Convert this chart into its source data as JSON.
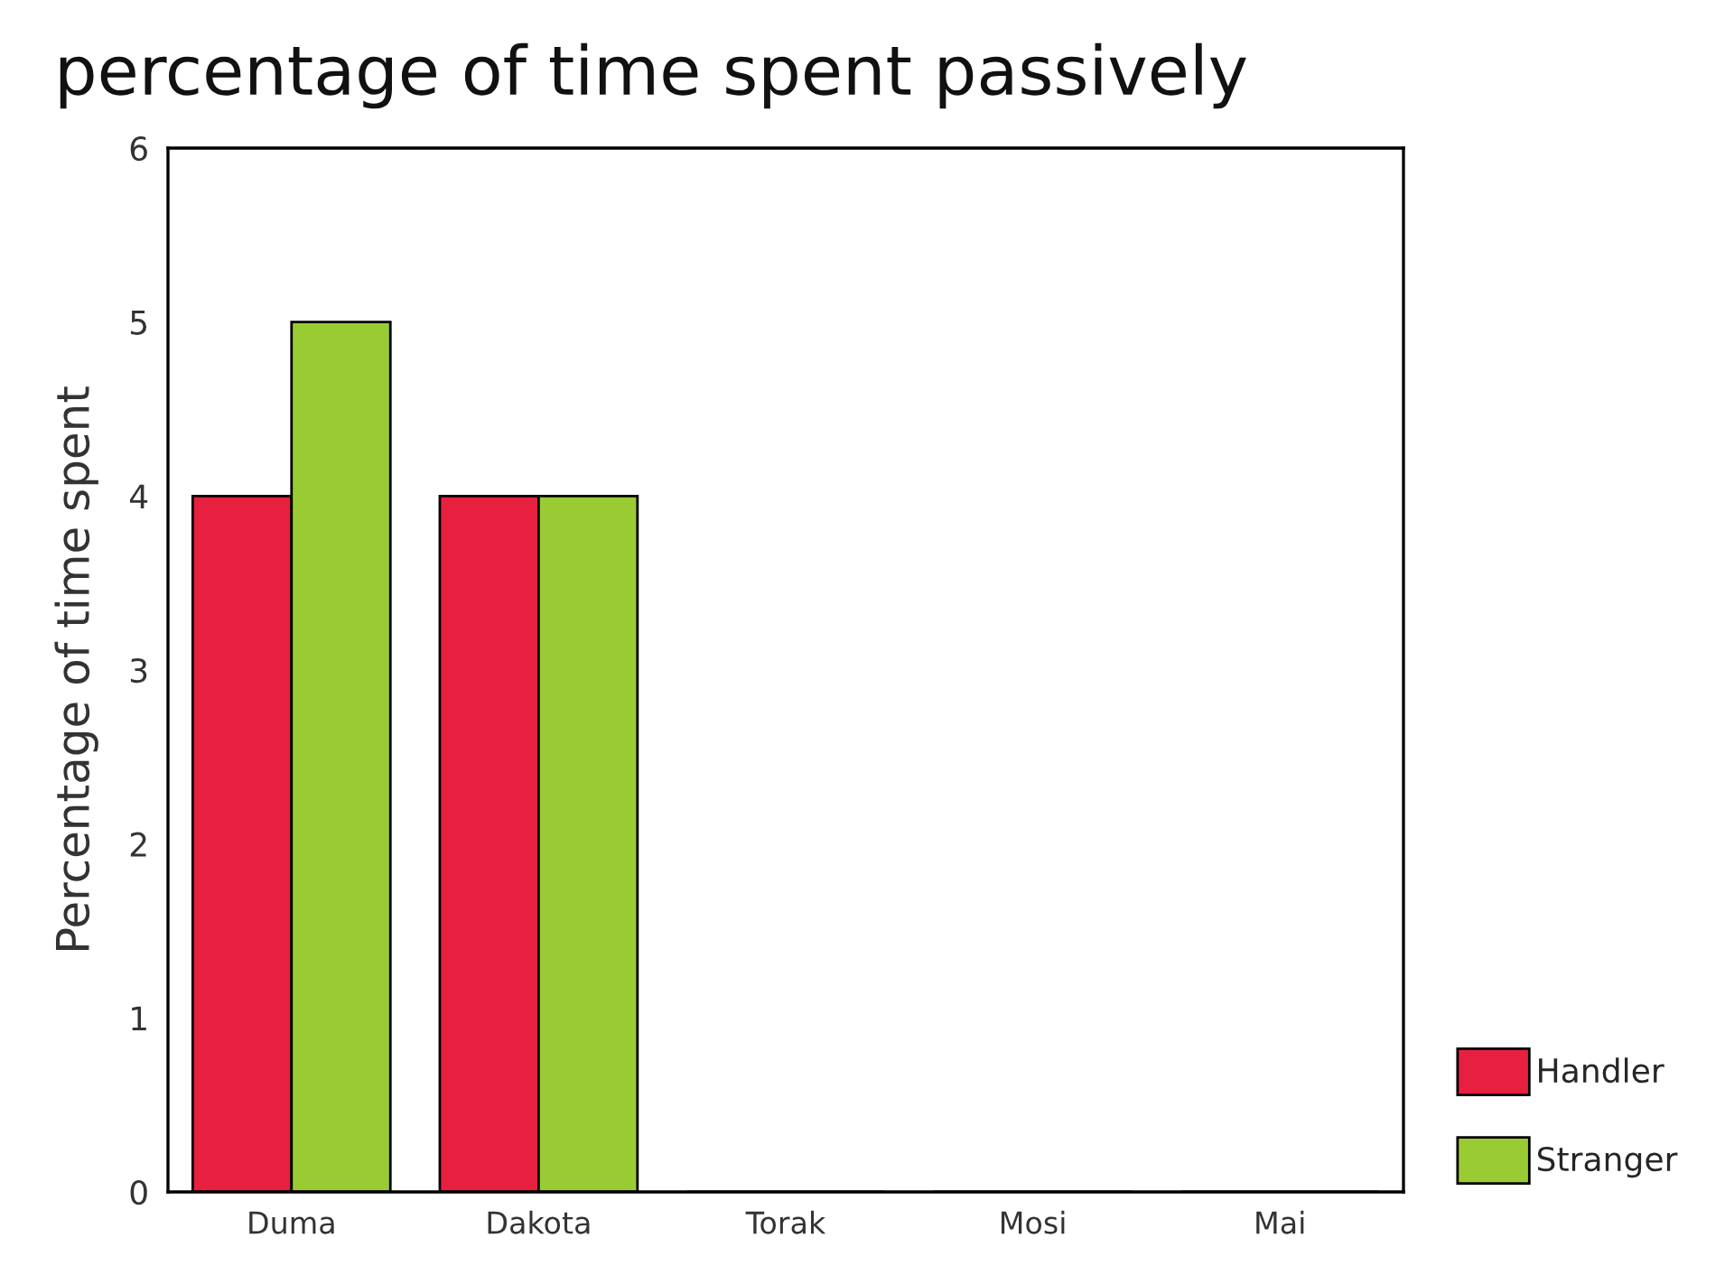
{
  "chart_data": {
    "type": "bar",
    "title": "percentage of time spent passively",
    "ylabel": "Percentage of time spent",
    "categories": [
      "Duma",
      "Dakota",
      "Torak",
      "Mosi",
      "Mai"
    ],
    "series": [
      {
        "name": "Handler",
        "color": "#e8203f",
        "values": [
          4,
          4,
          0,
          0,
          0
        ]
      },
      {
        "name": "Stranger",
        "color": "#99cc33",
        "values": [
          5,
          4,
          0,
          0,
          0
        ]
      }
    ],
    "ylim": [
      0,
      6
    ],
    "yticks": [
      0,
      1,
      2,
      3,
      4,
      5,
      6
    ],
    "grid": false,
    "legend": "right"
  }
}
